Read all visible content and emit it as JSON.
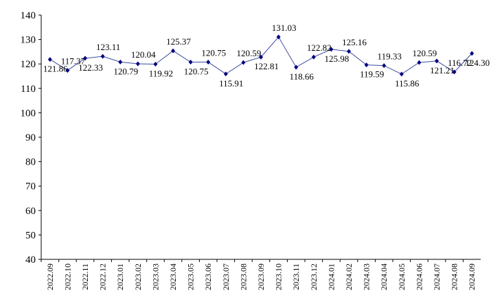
{
  "chart_data": {
    "type": "line",
    "categories": [
      "2022.09",
      "2022.10",
      "2022.11",
      "2022.12",
      "2023.01",
      "2023.02",
      "2023.03",
      "2023.04",
      "2023.05",
      "2023.06",
      "2023.07",
      "2023.08",
      "2023.09",
      "2023.10",
      "2023.11",
      "2023.12",
      "2024.01",
      "2024.02",
      "2024.03",
      "2024.04",
      "2024.05",
      "2024.06",
      "2024.07",
      "2024.08",
      "2024.09"
    ],
    "series": [
      {
        "color": "#3a4aa0",
        "values": [
          121.86,
          117.37,
          122.33,
          123.11,
          120.79,
          120.04,
          119.92,
          125.37,
          120.75,
          120.75,
          115.91,
          120.59,
          122.81,
          131.03,
          118.66,
          122.82,
          125.98,
          125.16,
          119.59,
          119.33,
          115.86,
          120.59,
          121.21,
          116.72,
          124.3
        ],
        "value_labels": [
          "121.86",
          "117.37",
          "122.33",
          "123.11",
          "120.79",
          "120.04",
          "119.92",
          "125.37",
          "120.75",
          "120.75",
          "115.91",
          "120.59",
          "122.81",
          "131.03",
          "118.66",
          "122.82",
          "125.98",
          "125.16",
          "119.59",
          "119.33",
          "115.86",
          "120.59",
          "121.21",
          "116.72",
          "124.30"
        ]
      }
    ],
    "ylim": [
      40,
      140
    ],
    "yticks": [
      40,
      50,
      60,
      70,
      80,
      90,
      100,
      110,
      120,
      130,
      140
    ],
    "grid": false
  }
}
